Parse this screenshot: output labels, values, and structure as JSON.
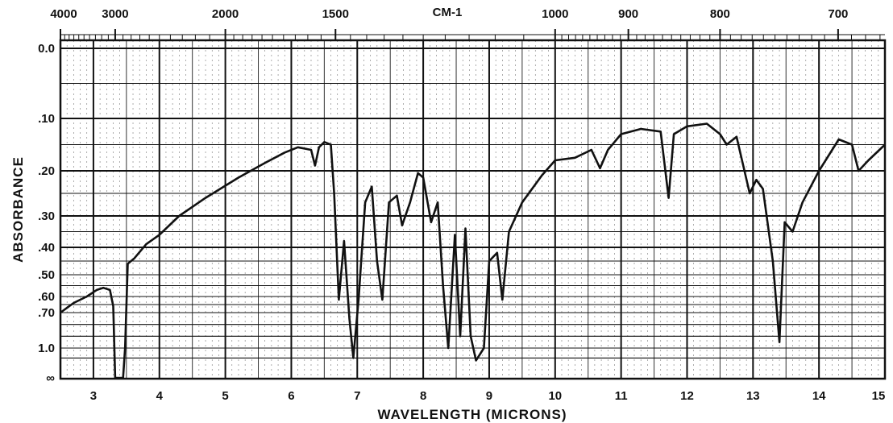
{
  "chart_data": {
    "type": "line",
    "title": "",
    "xlabel": "WAVELENGTH (MICRONS)",
    "ylabel": "ABSORBANCE",
    "top_axis_label": "CM-1",
    "x_range": [
      2.5,
      15
    ],
    "x_ticks": [
      "3",
      "4",
      "5",
      "6",
      "7",
      "8",
      "9",
      "10",
      "11",
      "12",
      "13",
      "14",
      "15"
    ],
    "top_ticks": [
      {
        "label": "4000",
        "wavelength": 2.5
      },
      {
        "label": "3000",
        "wavelength": 3.33
      },
      {
        "label": "2000",
        "wavelength": 5.0
      },
      {
        "label": "1500",
        "wavelength": 6.67
      },
      {
        "label": "1000",
        "wavelength": 10.0
      },
      {
        "label": "900",
        "wavelength": 11.11
      },
      {
        "label": "800",
        "wavelength": 12.5
      },
      {
        "label": "700",
        "wavelength": 14.29
      }
    ],
    "y_scale": "log-transmittance (absorbance)",
    "y_ticks": [
      {
        "label": "0.0",
        "value": 0.0
      },
      {
        "label": ".10",
        "value": 0.1
      },
      {
        "label": ".20",
        "value": 0.2
      },
      {
        "label": ".30",
        "value": 0.3
      },
      {
        "label": ".40",
        "value": 0.4
      },
      {
        "label": ".50",
        "value": 0.5
      },
      {
        "label": ".60",
        "value": 0.6
      },
      {
        "label": ".70",
        "value": 0.7
      },
      {
        "label": "1.0",
        "value": 1.0
      },
      {
        "label": "∞",
        "value": "infinity"
      }
    ],
    "grid": true,
    "series": [
      {
        "points": [
          [
            2.5,
            0.7
          ],
          [
            2.7,
            0.64
          ],
          [
            2.9,
            0.6
          ],
          [
            3.05,
            0.57
          ],
          [
            3.15,
            0.56
          ],
          [
            3.25,
            0.57
          ],
          [
            3.3,
            0.66
          ],
          [
            3.33,
            1.6
          ],
          [
            3.45,
            1.6
          ],
          [
            3.48,
            1.0
          ],
          [
            3.52,
            0.46
          ],
          [
            3.62,
            0.44
          ],
          [
            3.8,
            0.39
          ],
          [
            4.0,
            0.36
          ],
          [
            4.3,
            0.3
          ],
          [
            4.7,
            0.26
          ],
          [
            5.2,
            0.215
          ],
          [
            5.6,
            0.185
          ],
          [
            5.9,
            0.165
          ],
          [
            6.1,
            0.155
          ],
          [
            6.3,
            0.16
          ],
          [
            6.36,
            0.19
          ],
          [
            6.42,
            0.155
          ],
          [
            6.5,
            0.145
          ],
          [
            6.6,
            0.15
          ],
          [
            6.65,
            0.25
          ],
          [
            6.72,
            0.62
          ],
          [
            6.8,
            0.38
          ],
          [
            6.88,
            0.75
          ],
          [
            6.94,
            1.2
          ],
          [
            7.02,
            0.62
          ],
          [
            7.12,
            0.27
          ],
          [
            7.22,
            0.235
          ],
          [
            7.3,
            0.45
          ],
          [
            7.38,
            0.62
          ],
          [
            7.48,
            0.27
          ],
          [
            7.6,
            0.255
          ],
          [
            7.68,
            0.33
          ],
          [
            7.8,
            0.27
          ],
          [
            7.92,
            0.205
          ],
          [
            8.0,
            0.215
          ],
          [
            8.12,
            0.32
          ],
          [
            8.22,
            0.27
          ],
          [
            8.3,
            0.55
          ],
          [
            8.38,
            1.0
          ],
          [
            8.48,
            0.36
          ],
          [
            8.56,
            0.9
          ],
          [
            8.64,
            0.34
          ],
          [
            8.72,
            0.9
          ],
          [
            8.8,
            1.25
          ],
          [
            8.92,
            1.0
          ],
          [
            9.0,
            0.45
          ],
          [
            9.12,
            0.42
          ],
          [
            9.2,
            0.62
          ],
          [
            9.3,
            0.35
          ],
          [
            9.5,
            0.27
          ],
          [
            9.8,
            0.21
          ],
          [
            10.0,
            0.18
          ],
          [
            10.3,
            0.175
          ],
          [
            10.55,
            0.16
          ],
          [
            10.68,
            0.195
          ],
          [
            10.8,
            0.16
          ],
          [
            11.0,
            0.13
          ],
          [
            11.3,
            0.12
          ],
          [
            11.6,
            0.125
          ],
          [
            11.72,
            0.26
          ],
          [
            11.8,
            0.13
          ],
          [
            12.0,
            0.115
          ],
          [
            12.3,
            0.11
          ],
          [
            12.5,
            0.13
          ],
          [
            12.6,
            0.15
          ],
          [
            12.75,
            0.135
          ],
          [
            12.95,
            0.25
          ],
          [
            13.05,
            0.22
          ],
          [
            13.15,
            0.24
          ],
          [
            13.3,
            0.45
          ],
          [
            13.4,
            0.95
          ],
          [
            13.48,
            0.32
          ],
          [
            13.6,
            0.35
          ],
          [
            13.75,
            0.27
          ],
          [
            14.0,
            0.2
          ],
          [
            14.3,
            0.14
          ],
          [
            14.5,
            0.15
          ],
          [
            14.6,
            0.2
          ],
          [
            14.75,
            0.18
          ],
          [
            15.0,
            0.15
          ]
        ]
      }
    ]
  }
}
